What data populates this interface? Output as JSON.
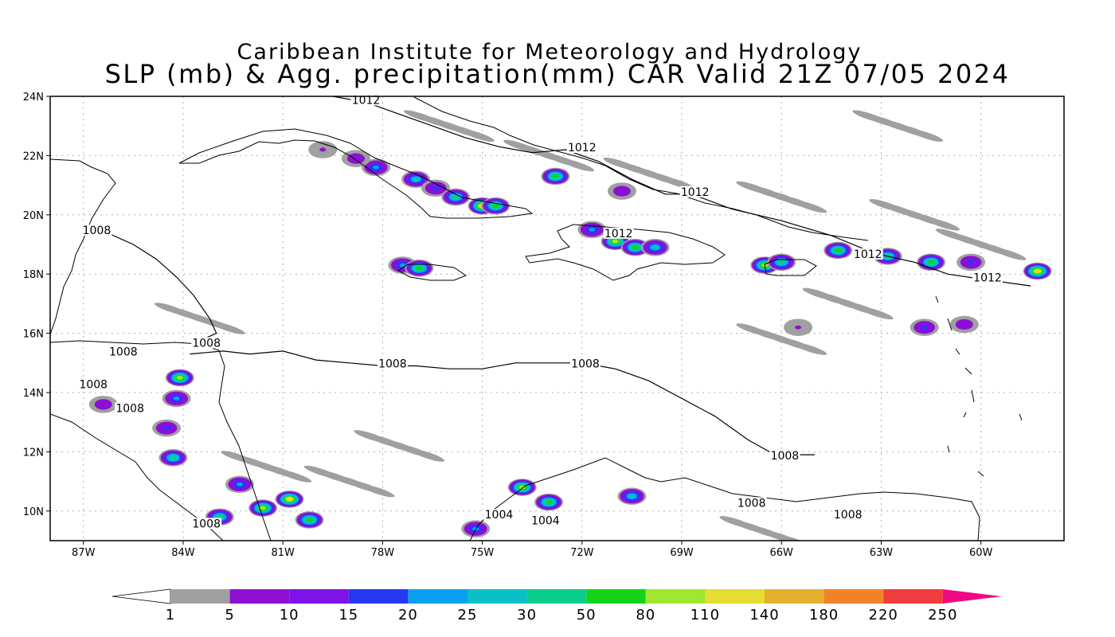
{
  "title": {
    "line1": "Caribbean Institute for Meteorology and Hydrology",
    "line2": "SLP (mb) & Agg. precipitation(mm) CAR Valid 21Z 07/05 2024"
  },
  "map": {
    "lon_range": [
      -88,
      -57.5
    ],
    "lat_range": [
      9,
      24
    ],
    "lon_ticks": [
      {
        "value": -87,
        "label": "87W"
      },
      {
        "value": -84,
        "label": "84W"
      },
      {
        "value": -81,
        "label": "81W"
      },
      {
        "value": -78,
        "label": "78W"
      },
      {
        "value": -75,
        "label": "75W"
      },
      {
        "value": -72,
        "label": "72W"
      },
      {
        "value": -69,
        "label": "69W"
      },
      {
        "value": -66,
        "label": "66W"
      },
      {
        "value": -63,
        "label": "63W"
      },
      {
        "value": -60,
        "label": "60W"
      }
    ],
    "lat_ticks": [
      {
        "value": 24,
        "label": "24N"
      },
      {
        "value": 22,
        "label": "22N"
      },
      {
        "value": 20,
        "label": "20N"
      },
      {
        "value": 18,
        "label": "18N"
      },
      {
        "value": 16,
        "label": "16N"
      },
      {
        "value": 14,
        "label": "14N"
      },
      {
        "value": 12,
        "label": "12N"
      },
      {
        "value": 10,
        "label": "10N"
      }
    ],
    "grid": true,
    "isobar_labels": [
      {
        "text": "1012",
        "lon": -78.5,
        "lat": 23.8
      },
      {
        "text": "1012",
        "lon": -72.0,
        "lat": 22.2
      },
      {
        "text": "1012",
        "lon": -68.6,
        "lat": 20.7
      },
      {
        "text": "1012",
        "lon": -70.9,
        "lat": 19.3
      },
      {
        "text": "1012",
        "lon": -63.4,
        "lat": 18.6
      },
      {
        "text": "1012",
        "lon": -59.8,
        "lat": 17.8
      },
      {
        "text": "1008",
        "lon": -86.6,
        "lat": 19.4
      },
      {
        "text": "1008",
        "lon": -83.3,
        "lat": 15.6
      },
      {
        "text": "1008",
        "lon": -85.8,
        "lat": 15.3
      },
      {
        "text": "1008",
        "lon": -86.7,
        "lat": 14.2
      },
      {
        "text": "1008",
        "lon": -85.6,
        "lat": 13.4
      },
      {
        "text": "1008",
        "lon": -77.7,
        "lat": 14.9
      },
      {
        "text": "1008",
        "lon": -71.9,
        "lat": 14.9
      },
      {
        "text": "1008",
        "lon": -65.9,
        "lat": 11.8
      },
      {
        "text": "1008",
        "lon": -66.9,
        "lat": 10.2
      },
      {
        "text": "1008",
        "lon": -64.0,
        "lat": 9.8
      },
      {
        "text": "1008",
        "lon": -83.3,
        "lat": 9.5
      },
      {
        "text": "1004",
        "lon": -74.5,
        "lat": 9.8
      },
      {
        "text": "1004",
        "lon": -73.1,
        "lat": 9.6
      }
    ],
    "isobars": [
      {
        "level": 1008,
        "points": [
          [
            -83.8,
            15.3
          ],
          [
            -82.8,
            15.4
          ],
          [
            -82.0,
            15.3
          ],
          [
            -81.0,
            15.4
          ],
          [
            -80.0,
            15.1
          ],
          [
            -79.0,
            15.0
          ],
          [
            -78.0,
            14.9
          ],
          [
            -77.0,
            14.9
          ],
          [
            -76.0,
            14.8
          ],
          [
            -75.0,
            14.8
          ],
          [
            -74.0,
            15.0
          ],
          [
            -73.0,
            15.0
          ],
          [
            -72.0,
            15.0
          ],
          [
            -71.0,
            14.8
          ],
          [
            -70.0,
            14.4
          ],
          [
            -69.0,
            13.8
          ],
          [
            -68.0,
            13.2
          ],
          [
            -67.0,
            12.4
          ],
          [
            -66.2,
            11.9
          ],
          [
            -65.0,
            11.9
          ]
        ]
      },
      {
        "level": 1008,
        "points": [
          [
            -86.3,
            19.4
          ],
          [
            -85.5,
            19.0
          ],
          [
            -84.8,
            18.5
          ],
          [
            -84.2,
            17.9
          ],
          [
            -83.7,
            17.3
          ],
          [
            -83.2,
            16.5
          ],
          [
            -83.0,
            16.0
          ],
          [
            -83.6,
            15.7
          ]
        ]
      },
      {
        "level": 1012,
        "points": [
          [
            -79.5,
            24.0
          ],
          [
            -78.5,
            23.8
          ],
          [
            -77.5,
            23.4
          ],
          [
            -76.5,
            23.0
          ],
          [
            -75.5,
            22.6
          ],
          [
            -74.5,
            22.3
          ],
          [
            -73.5,
            22.1
          ],
          [
            -72.5,
            22.2
          ],
          [
            -71.5,
            21.8
          ],
          [
            -70.5,
            21.2
          ],
          [
            -69.5,
            20.7
          ],
          [
            -68.7,
            20.7
          ],
          [
            -67.5,
            20.2
          ],
          [
            -66.0,
            19.8
          ],
          [
            -64.5,
            19.3
          ],
          [
            -63.2,
            18.7
          ],
          [
            -62.0,
            18.4
          ],
          [
            -61.0,
            18.0
          ],
          [
            -59.8,
            17.8
          ],
          [
            -58.5,
            17.6
          ]
        ]
      }
    ]
  },
  "colorbar": {
    "levels": [
      "1",
      "5",
      "10",
      "15",
      "20",
      "25",
      "30",
      "50",
      "80",
      "110",
      "140",
      "180",
      "220",
      "250"
    ],
    "colors": [
      "#a0a0a0",
      "#8c0fd2",
      "#7f12e6",
      "#2638f0",
      "#0aa0f0",
      "#0ac0c8",
      "#0acc8c",
      "#14d21a",
      "#a0e632",
      "#e6dc32",
      "#e6af2d",
      "#f08228",
      "#f03c3c",
      "#f00a82"
    ],
    "under_color": "#ffffff",
    "over_color": "#f00a82"
  },
  "precip": {
    "cells": [
      {
        "lon": -77.0,
        "lat": 21.2,
        "v": 25
      },
      {
        "lon": -76.4,
        "lat": 20.9,
        "v": 15
      },
      {
        "lon": -75.8,
        "lat": 20.6,
        "v": 30
      },
      {
        "lon": -75.0,
        "lat": 20.3,
        "v": 110
      },
      {
        "lon": -74.6,
        "lat": 20.3,
        "v": 50
      },
      {
        "lon": -78.2,
        "lat": 21.6,
        "v": 20
      },
      {
        "lon": -78.8,
        "lat": 21.9,
        "v": 10
      },
      {
        "lon": -79.8,
        "lat": 22.2,
        "v": 5
      },
      {
        "lon": -77.4,
        "lat": 18.3,
        "v": 20
      },
      {
        "lon": -76.9,
        "lat": 18.2,
        "v": 50
      },
      {
        "lon": -71.0,
        "lat": 19.1,
        "v": 80
      },
      {
        "lon": -70.4,
        "lat": 18.9,
        "v": 50
      },
      {
        "lon": -71.7,
        "lat": 19.5,
        "v": 20
      },
      {
        "lon": -69.8,
        "lat": 18.9,
        "v": 25
      },
      {
        "lon": -66.5,
        "lat": 18.3,
        "v": 80
      },
      {
        "lon": -66.0,
        "lat": 18.4,
        "v": 30
      },
      {
        "lon": -64.3,
        "lat": 18.8,
        "v": 50
      },
      {
        "lon": -62.8,
        "lat": 18.6,
        "v": 30
      },
      {
        "lon": -61.5,
        "lat": 18.4,
        "v": 50
      },
      {
        "lon": -58.3,
        "lat": 18.1,
        "v": 110
      },
      {
        "lon": -60.3,
        "lat": 18.4,
        "v": 15
      },
      {
        "lon": -72.8,
        "lat": 21.3,
        "v": 50
      },
      {
        "lon": -70.8,
        "lat": 20.8,
        "v": 10
      },
      {
        "lon": -84.1,
        "lat": 14.5,
        "v": 80
      },
      {
        "lon": -84.2,
        "lat": 13.8,
        "v": 20
      },
      {
        "lon": -84.5,
        "lat": 12.8,
        "v": 15
      },
      {
        "lon": -84.3,
        "lat": 11.8,
        "v": 30
      },
      {
        "lon": -80.8,
        "lat": 10.4,
        "v": 110
      },
      {
        "lon": -81.6,
        "lat": 10.1,
        "v": 80
      },
      {
        "lon": -80.2,
        "lat": 9.7,
        "v": 50
      },
      {
        "lon": -82.3,
        "lat": 10.9,
        "v": 20
      },
      {
        "lon": -82.9,
        "lat": 9.8,
        "v": 30
      },
      {
        "lon": -73.8,
        "lat": 10.8,
        "v": 80
      },
      {
        "lon": -73.0,
        "lat": 10.3,
        "v": 50
      },
      {
        "lon": -75.2,
        "lat": 9.4,
        "v": 20
      },
      {
        "lon": -70.5,
        "lat": 10.5,
        "v": 25
      },
      {
        "lon": -61.7,
        "lat": 16.2,
        "v": 15
      },
      {
        "lon": -60.5,
        "lat": 16.3,
        "v": 10
      },
      {
        "lon": -65.5,
        "lat": 16.2,
        "v": 5
      },
      {
        "lon": -86.4,
        "lat": 13.6,
        "v": 10
      }
    ],
    "streaks": [
      {
        "lon": -76.0,
        "lat": 23.0,
        "v": 1
      },
      {
        "lon": -73.0,
        "lat": 22.0,
        "v": 1
      },
      {
        "lon": -70.0,
        "lat": 21.4,
        "v": 1
      },
      {
        "lon": -66.0,
        "lat": 20.6,
        "v": 1
      },
      {
        "lon": -62.0,
        "lat": 20.0,
        "v": 1
      },
      {
        "lon": -60.0,
        "lat": 19.0,
        "v": 1
      },
      {
        "lon": -64.0,
        "lat": 17.0,
        "v": 1
      },
      {
        "lon": -66.0,
        "lat": 15.8,
        "v": 1
      },
      {
        "lon": -81.5,
        "lat": 11.5,
        "v": 1
      },
      {
        "lon": -79.0,
        "lat": 11.0,
        "v": 1
      },
      {
        "lon": -77.5,
        "lat": 12.2,
        "v": 1
      },
      {
        "lon": -83.5,
        "lat": 16.5,
        "v": 1
      },
      {
        "lon": -62.5,
        "lat": 23.0,
        "v": 1
      },
      {
        "lon": -66.5,
        "lat": 9.3,
        "v": 1
      }
    ]
  }
}
